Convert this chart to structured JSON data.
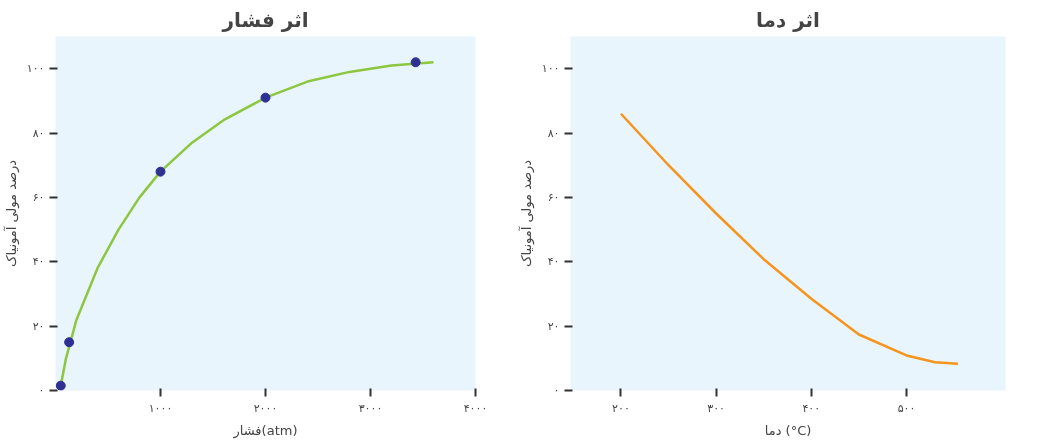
{
  "chart_data": [
    {
      "type": "line",
      "title": "اثر فشار",
      "xlabel": "فشار(atm)",
      "ylabel": "درصد مولی آمونیاک",
      "xlim": [
        0,
        4000
      ],
      "ylim": [
        0,
        110
      ],
      "xticks": [
        {
          "value": 1000,
          "label": "۱۰۰۰"
        },
        {
          "value": 2000,
          "label": "۲۰۰۰"
        },
        {
          "value": 3000,
          "label": "۳۰۰۰"
        },
        {
          "value": 4000,
          "label": "۴۰۰۰"
        }
      ],
      "yticks": [
        {
          "value": 0,
          "label": "۰"
        },
        {
          "value": 20,
          "label": "۲۰"
        },
        {
          "value": 40,
          "label": "۴۰"
        },
        {
          "value": 60,
          "label": "۶۰"
        },
        {
          "value": 80,
          "label": "۸۰"
        },
        {
          "value": 100,
          "label": "۱۰۰"
        }
      ],
      "grid": false,
      "series": [
        {
          "color": "#8dc63f",
          "x": [
            50,
            100,
            200,
            400,
            600,
            800,
            1000,
            1300,
            1600,
            2000,
            2400,
            2800,
            3200,
            3600
          ],
          "values": [
            1.5,
            10,
            22,
            38,
            50,
            60,
            68,
            77,
            84,
            91,
            96,
            99,
            101,
            102
          ]
        },
        {
          "type": "scatter",
          "color": "#2e3192",
          "marker": "circle",
          "x": [
            50,
            130,
            1000,
            2000,
            3430
          ],
          "values": [
            1.5,
            15,
            68,
            91,
            102
          ]
        }
      ]
    },
    {
      "type": "line",
      "title": "اثر دما",
      "xlabel": "دما (°C)",
      "ylabel": "درصد مولی آمونیاک",
      "xlim": [
        147,
        604
      ],
      "ylim": [
        0,
        110
      ],
      "xticks": [
        {
          "value": 200,
          "label": "۲۰۰"
        },
        {
          "value": 300,
          "label": "۳۰۰"
        },
        {
          "value": 400,
          "label": "۴۰۰"
        },
        {
          "value": 500,
          "label": "۵۰۰"
        }
      ],
      "yticks": [
        {
          "value": 0,
          "label": "۰"
        },
        {
          "value": 20,
          "label": "۲۰"
        },
        {
          "value": 40,
          "label": "۴۰"
        },
        {
          "value": 60,
          "label": "۶۰"
        },
        {
          "value": 80,
          "label": "۸۰"
        },
        {
          "value": 100,
          "label": "۱۰۰"
        }
      ],
      "grid": false,
      "series": [
        {
          "color": "#f7941d",
          "x": [
            200,
            250,
            300,
            350,
            400,
            450,
            500,
            530,
            554
          ],
          "values": [
            86,
            70,
            55,
            40.8,
            28.5,
            17.4,
            10.9,
            8.8,
            8.3
          ]
        }
      ]
    }
  ]
}
